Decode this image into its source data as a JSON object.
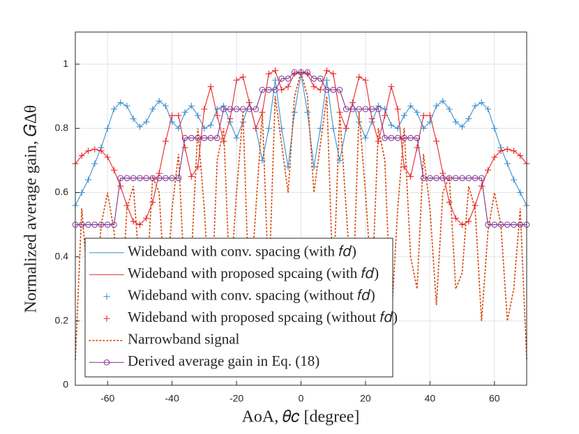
{
  "chart_data": {
    "type": "line",
    "x_label": "AoA, 𝜃𝑐 [degree]",
    "y_label": "Normalized average gain, 𝐺Δθ",
    "xlim": [
      -70,
      70
    ],
    "ylim": [
      0,
      1.1
    ],
    "xticks": [
      -60,
      -40,
      -20,
      0,
      20,
      40,
      60
    ],
    "yticks": [
      0,
      0.2,
      0.4,
      0.6,
      0.8,
      1
    ],
    "grid": true,
    "legend": "lower left",
    "x": [
      -70,
      -68,
      -66,
      -64,
      -62,
      -60,
      -58,
      -56,
      -54,
      -52,
      -50,
      -48,
      -46,
      -44,
      -42,
      -40,
      -38,
      -36,
      -34,
      -32,
      -30,
      -28,
      -26,
      -24,
      -22,
      -20,
      -18,
      -16,
      -14,
      -12,
      -10,
      -8,
      -6,
      -4,
      -2,
      0,
      2,
      4,
      6,
      8,
      10,
      12,
      14,
      16,
      18,
      20,
      22,
      24,
      26,
      28,
      30,
      32,
      34,
      36,
      38,
      40,
      42,
      44,
      46,
      48,
      50,
      52,
      54,
      56,
      58,
      60,
      62,
      64,
      66,
      68,
      70
    ],
    "series": [
      {
        "name": "Wideband with conv. spacing (with 𝑓𝑑)",
        "color": "#3a8fd0",
        "line": "solid",
        "marker": "none",
        "values": [
          0.56,
          0.6,
          0.64,
          0.69,
          0.74,
          0.8,
          0.86,
          0.88,
          0.87,
          0.83,
          0.805,
          0.82,
          0.86,
          0.885,
          0.87,
          0.82,
          0.8,
          0.85,
          0.87,
          0.84,
          0.8,
          0.81,
          0.86,
          0.87,
          0.82,
          0.77,
          0.82,
          0.88,
          0.8,
          0.7,
          0.8,
          0.95,
          0.8,
          0.68,
          0.85,
          0.97,
          0.85,
          0.68,
          0.8,
          0.95,
          0.8,
          0.7,
          0.8,
          0.88,
          0.82,
          0.77,
          0.82,
          0.87,
          0.86,
          0.81,
          0.8,
          0.84,
          0.87,
          0.85,
          0.8,
          0.82,
          0.87,
          0.885,
          0.86,
          0.82,
          0.805,
          0.83,
          0.87,
          0.88,
          0.86,
          0.8,
          0.74,
          0.69,
          0.64,
          0.6,
          0.56
        ]
      },
      {
        "name": "Wideband with proposed spcaing (with 𝑓𝑑)",
        "color": "#e8262a",
        "line": "solid",
        "marker": "none",
        "values": [
          0.69,
          0.715,
          0.73,
          0.735,
          0.73,
          0.71,
          0.67,
          0.62,
          0.56,
          0.51,
          0.5,
          0.52,
          0.57,
          0.66,
          0.76,
          0.84,
          0.84,
          0.74,
          0.65,
          0.68,
          0.86,
          0.93,
          0.84,
          0.76,
          0.83,
          0.95,
          0.96,
          0.88,
          0.8,
          0.85,
          0.97,
          0.98,
          0.92,
          0.93,
          0.97,
          0.975,
          0.97,
          0.93,
          0.92,
          0.98,
          0.97,
          0.85,
          0.8,
          0.88,
          0.96,
          0.95,
          0.83,
          0.76,
          0.84,
          0.93,
          0.86,
          0.68,
          0.65,
          0.74,
          0.84,
          0.84,
          0.76,
          0.66,
          0.57,
          0.52,
          0.5,
          0.51,
          0.56,
          0.62,
          0.67,
          0.71,
          0.73,
          0.735,
          0.73,
          0.715,
          0.69
        ]
      },
      {
        "name": "Wideband with conv. spacing (without 𝑓𝑑)",
        "color": "#3a8fd0",
        "line": "none",
        "marker": "+",
        "values": [
          0.56,
          0.6,
          0.64,
          0.69,
          0.74,
          0.8,
          0.86,
          0.88,
          0.87,
          0.83,
          0.805,
          0.82,
          0.86,
          0.885,
          0.87,
          0.82,
          0.8,
          0.85,
          0.87,
          0.84,
          0.8,
          0.81,
          0.86,
          0.87,
          0.82,
          0.77,
          0.82,
          0.88,
          0.8,
          0.7,
          0.8,
          0.95,
          0.8,
          0.68,
          0.85,
          0.97,
          0.85,
          0.68,
          0.8,
          0.95,
          0.8,
          0.7,
          0.8,
          0.88,
          0.82,
          0.77,
          0.82,
          0.87,
          0.86,
          0.81,
          0.8,
          0.84,
          0.87,
          0.85,
          0.8,
          0.82,
          0.87,
          0.885,
          0.86,
          0.82,
          0.805,
          0.83,
          0.87,
          0.88,
          0.86,
          0.8,
          0.74,
          0.69,
          0.64,
          0.6,
          0.56
        ]
      },
      {
        "name": "Wideband with proposed spcaing (without 𝑓𝑑)",
        "color": "#e8262a",
        "line": "none",
        "marker": "+",
        "values": [
          0.69,
          0.715,
          0.73,
          0.735,
          0.73,
          0.71,
          0.67,
          0.62,
          0.56,
          0.51,
          0.5,
          0.52,
          0.57,
          0.66,
          0.76,
          0.84,
          0.84,
          0.74,
          0.65,
          0.68,
          0.86,
          0.93,
          0.84,
          0.76,
          0.83,
          0.95,
          0.96,
          0.88,
          0.8,
          0.85,
          0.97,
          0.98,
          0.92,
          0.93,
          0.97,
          0.975,
          0.97,
          0.93,
          0.92,
          0.98,
          0.97,
          0.85,
          0.8,
          0.88,
          0.96,
          0.95,
          0.83,
          0.76,
          0.84,
          0.93,
          0.86,
          0.68,
          0.65,
          0.74,
          0.84,
          0.84,
          0.76,
          0.66,
          0.57,
          0.52,
          0.5,
          0.51,
          0.56,
          0.62,
          0.67,
          0.71,
          0.73,
          0.735,
          0.73,
          0.715,
          0.69
        ]
      },
      {
        "name": "Narrowband signal",
        "color": "#d95319",
        "line": "dotted",
        "marker": "none",
        "values": [
          0.08,
          0.55,
          0.3,
          0.2,
          0.5,
          0.6,
          0.48,
          0.2,
          0.55,
          0.62,
          0.35,
          0.3,
          0.65,
          0.6,
          0.25,
          0.55,
          0.72,
          0.3,
          0.4,
          0.8,
          0.55,
          0.2,
          0.7,
          0.8,
          0.3,
          0.6,
          0.85,
          0.25,
          0.55,
          0.85,
          0.3,
          0.9,
          0.75,
          0.6,
          0.9,
          0.975,
          0.9,
          0.6,
          0.75,
          0.9,
          0.3,
          0.85,
          0.55,
          0.25,
          0.85,
          0.6,
          0.3,
          0.8,
          0.7,
          0.2,
          0.55,
          0.8,
          0.4,
          0.3,
          0.72,
          0.55,
          0.25,
          0.6,
          0.65,
          0.3,
          0.35,
          0.62,
          0.55,
          0.2,
          0.48,
          0.6,
          0.5,
          0.2,
          0.3,
          0.55,
          0.08
        ]
      },
      {
        "name": "Derived average gain in Eq. (18)",
        "color": "#7e2f8e",
        "line": "solid",
        "marker": "o",
        "values": [
          0.5,
          0.5,
          0.5,
          0.5,
          0.5,
          0.5,
          0.5,
          0.645,
          0.645,
          0.645,
          0.645,
          0.645,
          0.645,
          0.645,
          0.645,
          0.645,
          0.645,
          0.77,
          0.77,
          0.77,
          0.77,
          0.77,
          0.77,
          0.86,
          0.86,
          0.86,
          0.86,
          0.86,
          0.86,
          0.92,
          0.92,
          0.92,
          0.955,
          0.955,
          0.975,
          0.975,
          0.975,
          0.955,
          0.955,
          0.92,
          0.92,
          0.92,
          0.86,
          0.86,
          0.86,
          0.86,
          0.86,
          0.86,
          0.77,
          0.77,
          0.77,
          0.77,
          0.77,
          0.77,
          0.645,
          0.645,
          0.645,
          0.645,
          0.645,
          0.645,
          0.645,
          0.645,
          0.645,
          0.645,
          0.5,
          0.5,
          0.5,
          0.5,
          0.5,
          0.5,
          0.5
        ]
      }
    ]
  }
}
